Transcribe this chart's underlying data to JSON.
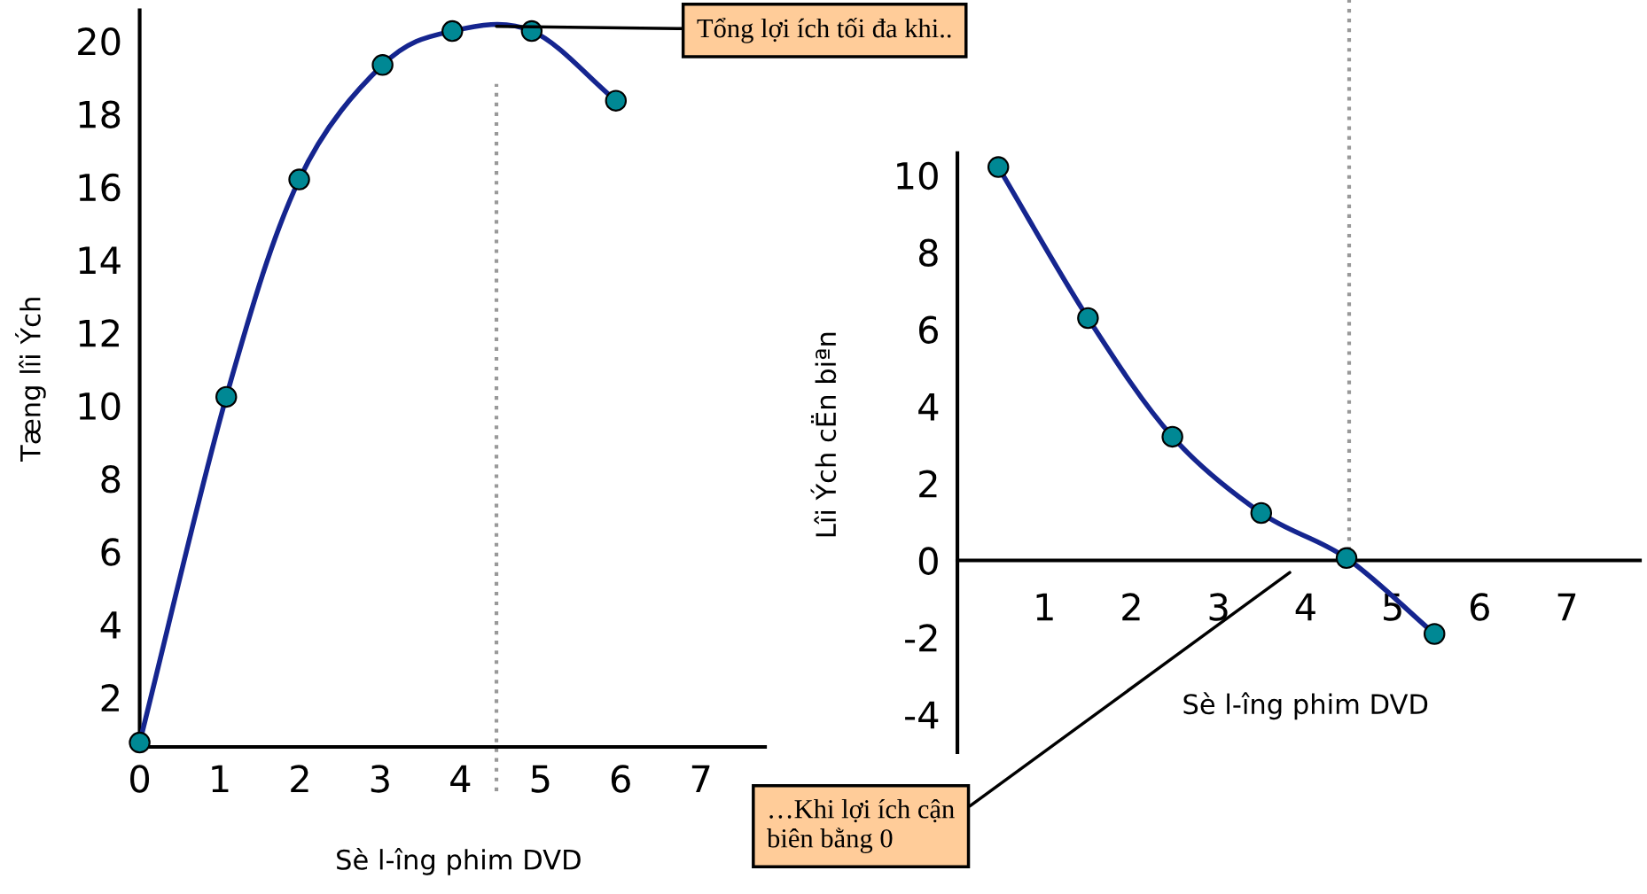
{
  "chart_data": [
    {
      "type": "line",
      "xlabel": "Sè l-îng phim DVD",
      "ylabel": "Tæng lîi Ých",
      "xlim": [
        0,
        7.8
      ],
      "ylim": [
        0.64,
        20.84
      ],
      "xticks": [
        0,
        1,
        2,
        3,
        4,
        5,
        6,
        7
      ],
      "yticks": [
        2,
        4,
        6,
        8,
        10,
        12,
        14,
        16,
        18,
        20
      ],
      "grid": false,
      "series": [
        {
          "color": "#15258f",
          "marker": "none",
          "x": [
            0,
            1.08,
            1.99,
            3.03,
            3.9,
            4.89,
            5.94
          ],
          "values": [
            0.76,
            10.24,
            16.2,
            19.34,
            20.27,
            20.27,
            18.36
          ]
        },
        {
          "type": "scatter",
          "marker": "circle",
          "color": "#008894",
          "x": [
            0,
            1.08,
            1.99,
            3.03,
            3.9,
            4.89,
            5.94
          ],
          "values": [
            0.76,
            10.24,
            16.2,
            19.34,
            20.27,
            20.27,
            18.36
          ]
        }
      ],
      "ref_lines": [
        {
          "axis": "x",
          "value": 4.45,
          "color": "#999999",
          "line_style": "dotted"
        }
      ],
      "annotations": [
        {
          "text": "Tổng lợi ích tối đa khi..",
          "x": 4.45,
          "y": 20.4
        }
      ]
    },
    {
      "type": "line",
      "xlabel": "Sè l-îng phim DVD",
      "ylabel": "Lîi Ých cËn biªn",
      "xlim": [
        0,
        7.84
      ],
      "ylim": [
        -4.98,
        10.57
      ],
      "xticks": [
        1,
        2,
        3,
        4,
        5,
        6,
        7
      ],
      "yticks": [
        -4,
        -2,
        0,
        2,
        4,
        6,
        8,
        10
      ],
      "grid": false,
      "series": [
        {
          "color": "#15258f",
          "marker": "none",
          "x": [
            0.47,
            1.5,
            2.47,
            3.49,
            4.47,
            5.48
          ],
          "values": [
            10.21,
            6.29,
            3.21,
            1.23,
            0.06,
            -1.91
          ]
        },
        {
          "type": "scatter",
          "marker": "circle",
          "color": "#008894",
          "x": [
            0.47,
            1.5,
            2.47,
            3.49,
            4.47,
            5.48
          ],
          "values": [
            10.21,
            6.29,
            3.21,
            1.23,
            0.06,
            -1.91
          ]
        }
      ],
      "ref_lines": [
        {
          "axis": "x",
          "value": 4.5,
          "color": "#999999",
          "line_style": "dotted"
        }
      ],
      "annotations": [
        "…Khi lợi ích cận\nbiên bằng 0"
      ]
    }
  ]
}
